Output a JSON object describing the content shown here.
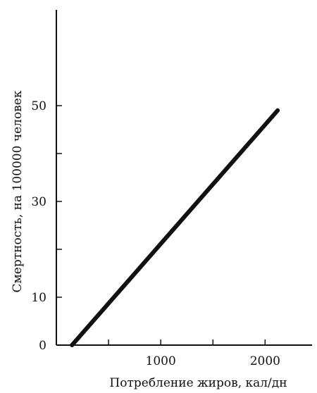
{
  "chart_data": {
    "type": "line",
    "xlabel": "Потребление жиров, кал/дн",
    "ylabel": "Смертность, на 100000  человек",
    "xlim": [
      0,
      2450
    ],
    "ylim": [
      0,
      70
    ],
    "x_ticks": [
      {
        "value": 500,
        "label": ""
      },
      {
        "value": 1000,
        "label": "1000"
      },
      {
        "value": 1500,
        "label": ""
      },
      {
        "value": 2000,
        "label": "2000"
      }
    ],
    "y_ticks": [
      {
        "value": 0,
        "label": "0"
      },
      {
        "value": 10,
        "label": "10"
      },
      {
        "value": 20,
        "label": ""
      },
      {
        "value": 30,
        "label": "30"
      },
      {
        "value": 40,
        "label": ""
      },
      {
        "value": 50,
        "label": "50"
      }
    ],
    "series": [
      {
        "x": [
          150,
          2120
        ],
        "y": [
          0,
          49
        ]
      }
    ],
    "grid": false,
    "line_color": "#111111"
  }
}
